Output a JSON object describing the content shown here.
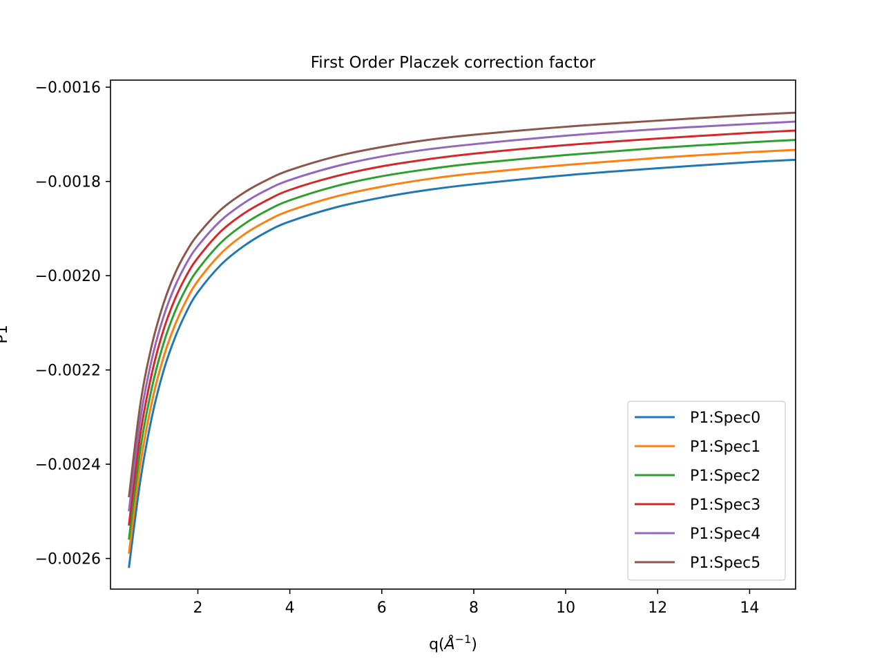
{
  "chart_data": {
    "type": "line",
    "title": "First Order Placzek correction factor",
    "xlabel_main": "q(",
    "xlabel_unit": "Å",
    "xlabel_exp": "−1",
    "xlabel_close": ")",
    "ylabel": "P1",
    "xlim": [
      0.1,
      15.0
    ],
    "ylim": [
      -0.002665,
      -0.001585
    ],
    "x_ticks": [
      2,
      4,
      6,
      8,
      10,
      12,
      14
    ],
    "y_ticks": [
      -0.0016,
      -0.0018,
      -0.002,
      -0.0022,
      -0.0024,
      -0.0026
    ],
    "y_tick_labels": [
      "−0.0016",
      "−0.0018",
      "−0.0020",
      "−0.0022",
      "−0.0024",
      "−0.0026"
    ],
    "legend_position": "lower-right",
    "grid": false,
    "x": [
      0.5,
      0.75,
      1.0,
      1.25,
      1.5,
      1.75,
      2.0,
      2.5,
      3.0,
      3.5,
      4.0,
      5.0,
      6.0,
      7.0,
      8.0,
      10.0,
      12.0,
      14.0,
      15.0
    ],
    "series": [
      {
        "name": "P1:Spec0",
        "color": "#1f77b4",
        "values": [
          -0.00262,
          -0.002434,
          -0.0023,
          -0.002203,
          -0.002132,
          -0.002077,
          -0.002035,
          -0.001977,
          -0.001937,
          -0.001907,
          -0.001885,
          -0.001855,
          -0.001834,
          -0.001818,
          -0.001806,
          -0.001787,
          -0.001772,
          -0.001759,
          -0.001754
        ]
      },
      {
        "name": "P1:Spec1",
        "color": "#ff7f0e",
        "values": [
          -0.00259,
          -0.0024,
          -0.002268,
          -0.002174,
          -0.002105,
          -0.002052,
          -0.002011,
          -0.001953,
          -0.001913,
          -0.001884,
          -0.001862,
          -0.001832,
          -0.001811,
          -0.001795,
          -0.001783,
          -0.001765,
          -0.00175,
          -0.001738,
          -0.001733
        ]
      },
      {
        "name": "P1:Spec2",
        "color": "#2ca02c",
        "values": [
          -0.00256,
          -0.002368,
          -0.002238,
          -0.002145,
          -0.002077,
          -0.002026,
          -0.001987,
          -0.00193,
          -0.001891,
          -0.001862,
          -0.00184,
          -0.00181,
          -0.001789,
          -0.001774,
          -0.001762,
          -0.001744,
          -0.001729,
          -0.001717,
          -0.001712
        ]
      },
      {
        "name": "P1:Spec3",
        "color": "#d62728",
        "values": [
          -0.00253,
          -0.002336,
          -0.002207,
          -0.002116,
          -0.00205,
          -0.002,
          -0.001962,
          -0.001906,
          -0.001868,
          -0.00184,
          -0.001818,
          -0.001789,
          -0.001768,
          -0.001753,
          -0.001741,
          -0.001723,
          -0.001709,
          -0.001697,
          -0.001692
        ]
      },
      {
        "name": "P1:Spec4",
        "color": "#9467bd",
        "values": [
          -0.0025,
          -0.002304,
          -0.002177,
          -0.002088,
          -0.002023,
          -0.001974,
          -0.001937,
          -0.001883,
          -0.001846,
          -0.001818,
          -0.001797,
          -0.001768,
          -0.001747,
          -0.001732,
          -0.001721,
          -0.001703,
          -0.001689,
          -0.001678,
          -0.001673
        ]
      },
      {
        "name": "P1:Spec5",
        "color": "#8c564b",
        "values": [
          -0.00247,
          -0.002272,
          -0.002147,
          -0.00206,
          -0.001996,
          -0.001949,
          -0.001913,
          -0.00186,
          -0.001824,
          -0.001797,
          -0.001776,
          -0.001747,
          -0.001727,
          -0.001712,
          -0.001701,
          -0.001684,
          -0.001671,
          -0.001659,
          -0.001654
        ]
      }
    ]
  }
}
